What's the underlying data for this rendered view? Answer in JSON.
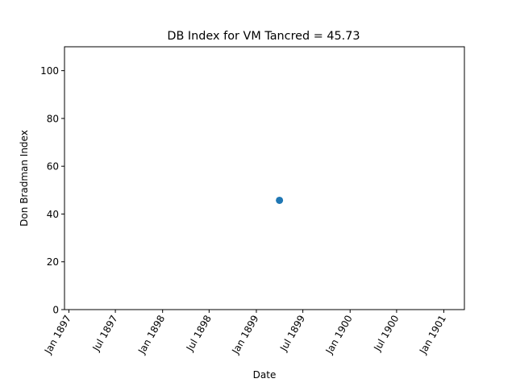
{
  "chart_data": {
    "type": "scatter",
    "title": "DB Index for VM Tancred = 45.73",
    "xlabel": "Date",
    "ylabel": "Don Bradman Index",
    "xlim": [
      "1896-12-15",
      "1901-03-22"
    ],
    "ylim": [
      0,
      110
    ],
    "x_ticks": [
      "1897-01-01",
      "1897-07-01",
      "1898-01-01",
      "1898-07-01",
      "1899-01-01",
      "1899-07-01",
      "1900-01-01",
      "1900-07-01",
      "1901-01-01"
    ],
    "x_tick_labels": [
      "Jan 1897",
      "Jul 1897",
      "Jan 1898",
      "Jul 1898",
      "Jan 1899",
      "Jul 1899",
      "Jan 1900",
      "Jul 1900",
      "Jan 1901"
    ],
    "y_ticks": [
      0,
      20,
      40,
      60,
      80,
      100
    ],
    "y_tick_labels": [
      "0",
      "20",
      "40",
      "60",
      "80",
      "100"
    ],
    "points": [
      {
        "x": "1899-04-01",
        "y": 45.73
      }
    ],
    "colors": {
      "marker": "#1f77b4",
      "axes": "#000000",
      "background": "#ffffff"
    },
    "grid": false,
    "legend": "none"
  }
}
